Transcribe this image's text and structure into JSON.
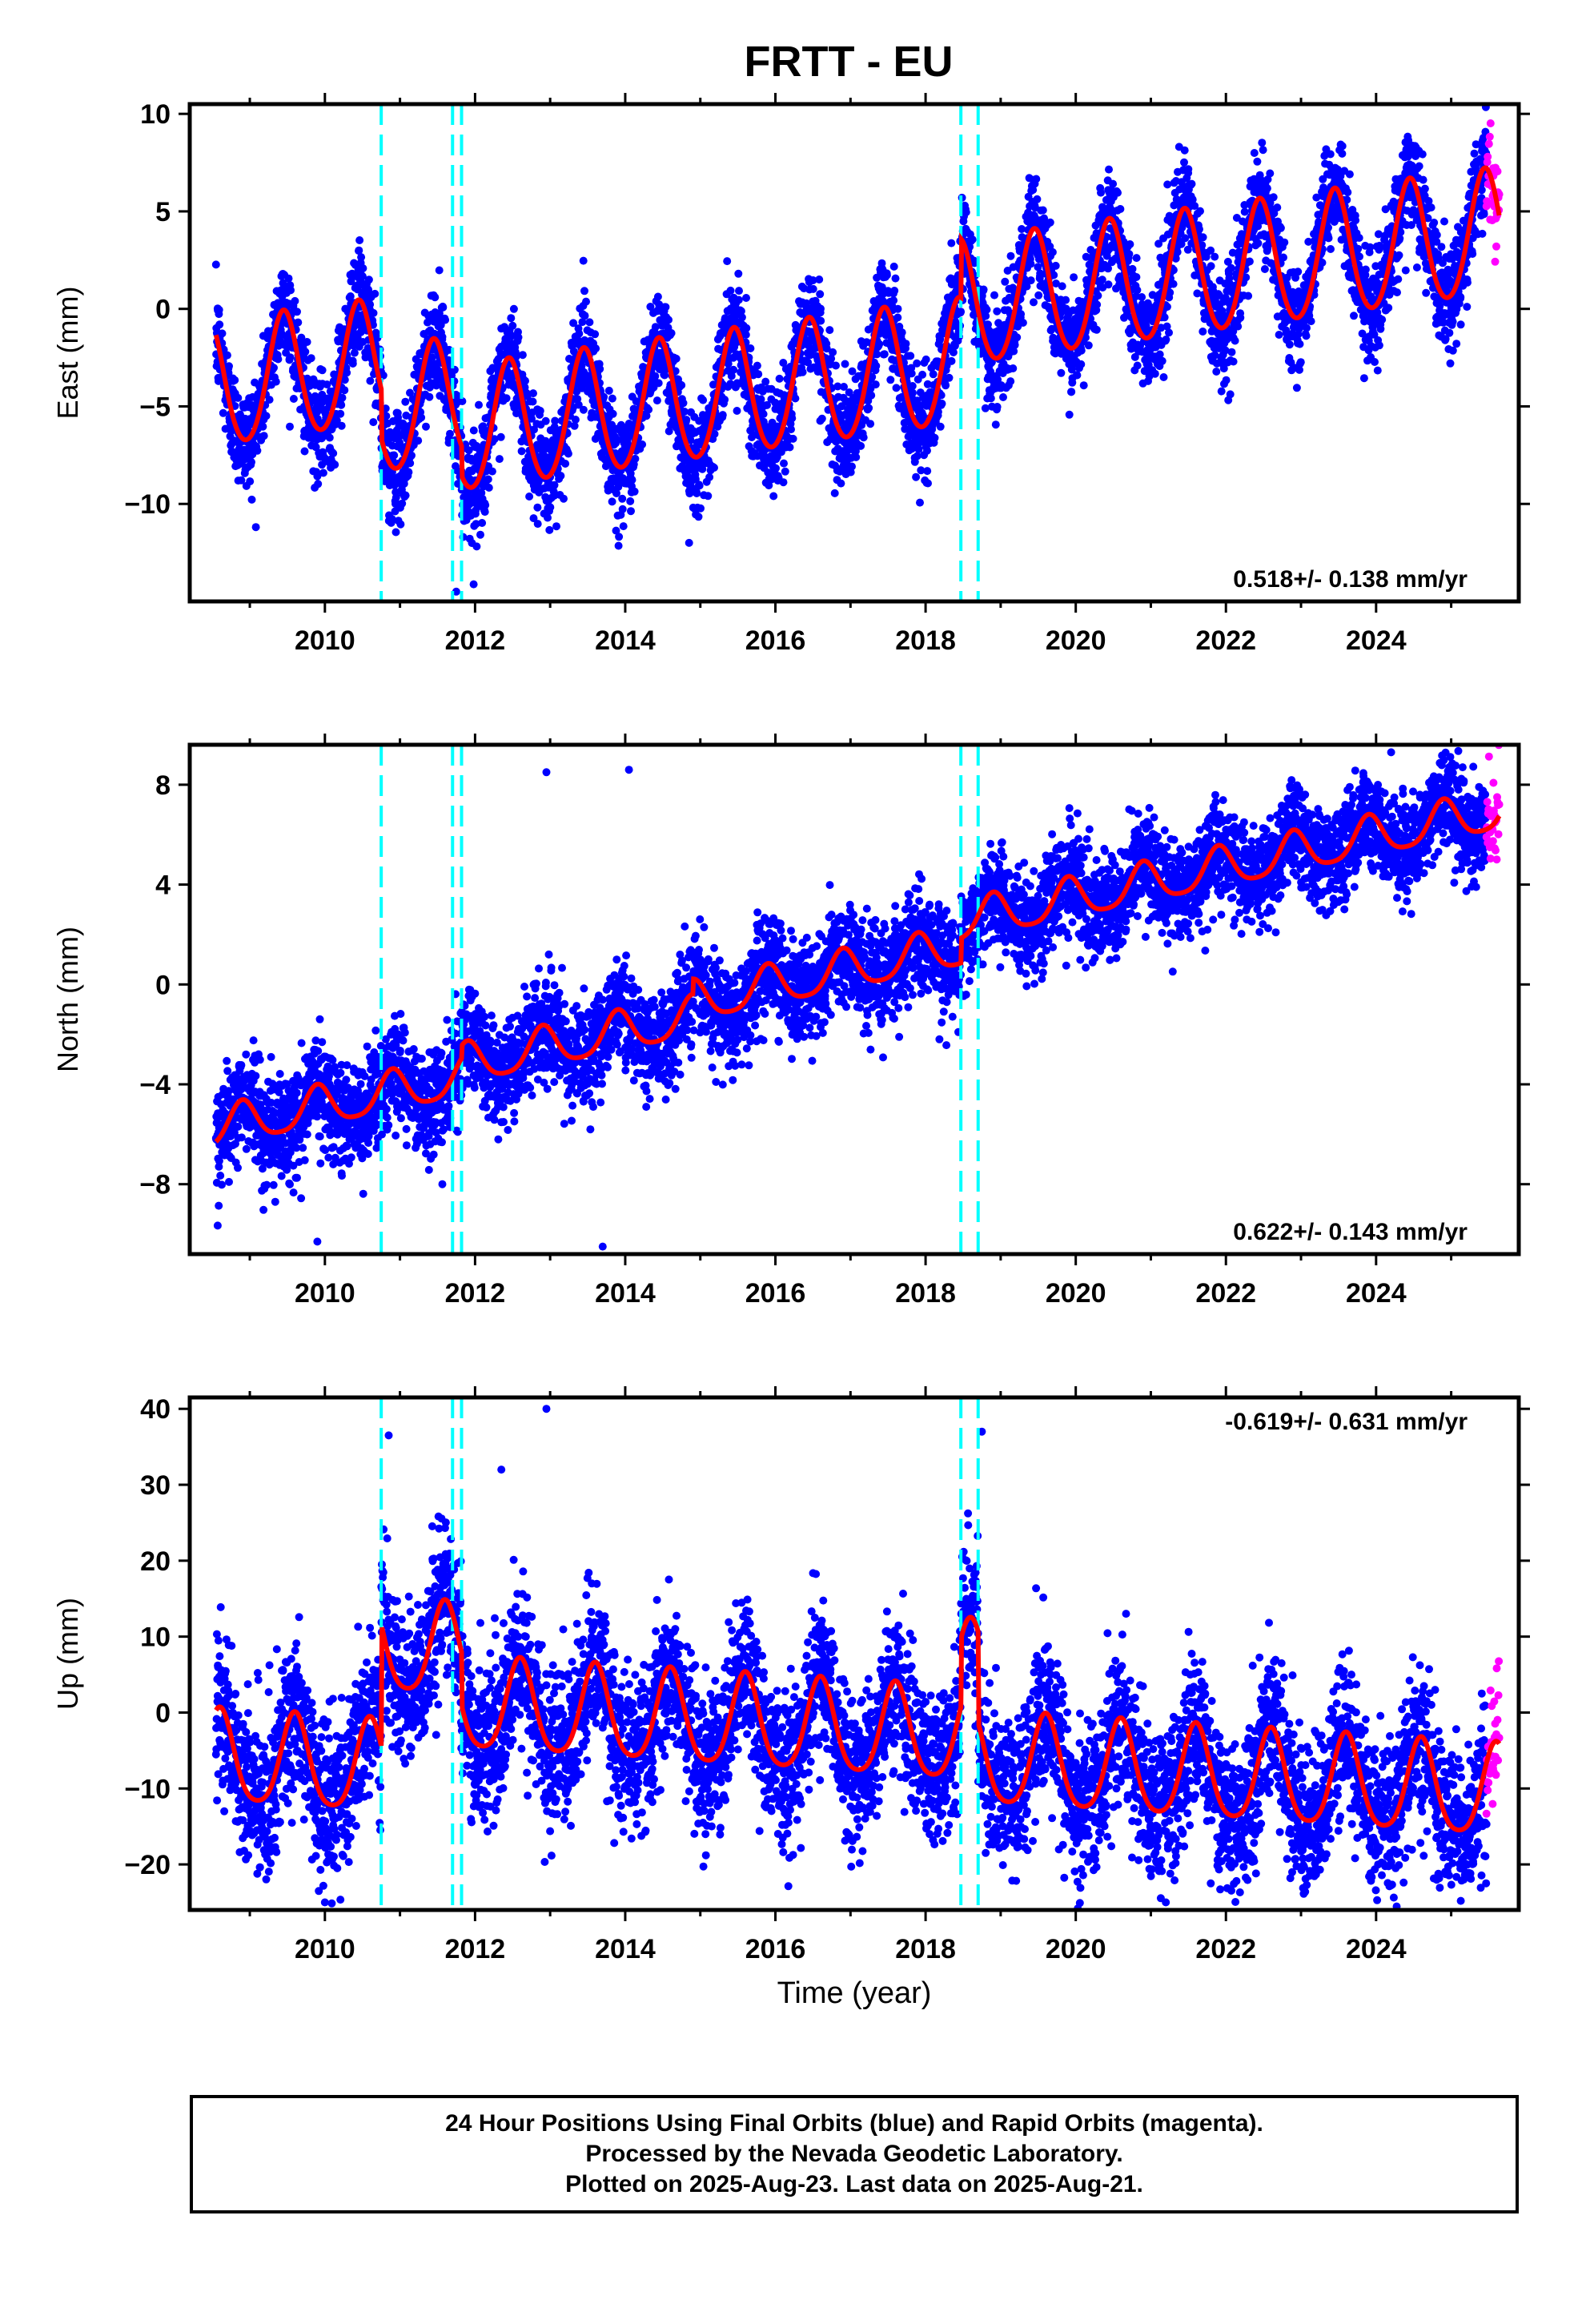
{
  "page": {
    "title": "FRTT - EU",
    "footer": {
      "line1": "24 Hour Positions Using Final Orbits (blue) and Rapid Orbits (magenta).",
      "line2": "Processed by the Nevada Geodetic Laboratory.",
      "line3": "Plotted on 2025-Aug-23. Last data on 2025-Aug-21."
    }
  },
  "colors": {
    "final_orbits": "#0000ff",
    "rapid_orbits": "#ff00ff",
    "model": "#ff0000",
    "steps": "#00ffff",
    "axes": "#000000"
  },
  "chart_data": [
    {
      "type": "scatter",
      "ylabel": "East (mm)",
      "xlabel": "",
      "xlim": [
        2008.2,
        2025.9
      ],
      "ylim": [
        -15,
        10.5
      ],
      "xticks": [
        2010,
        2012,
        2014,
        2016,
        2018,
        2020,
        2022,
        2024
      ],
      "yticks": [
        -10,
        -5,
        0,
        5,
        10
      ],
      "yticklabels": [
        "−10",
        "−5",
        "0",
        "5",
        "10"
      ],
      "velocity": "0.518+/- 0.138 mm/yr",
      "velocity_position": "bottom-right",
      "step_epochs": [
        2010.75,
        2011.7,
        2011.82,
        2018.47,
        2018.7
      ],
      "data_start": 2008.55,
      "data_end": 2025.64,
      "rapid_start": 2025.47,
      "model": {
        "offset": -4.2,
        "trend_mm_per_yr": 0.518,
        "annual_amplitude": 3.2,
        "annual_peak": 0.45,
        "semiannual_amplitude": 0.3
      },
      "model_steps": [
        {
          "epoch": 2010.75,
          "offset": -2.5
        },
        {
          "epoch": 2011.82,
          "offset": -1.5
        },
        {
          "epoch": 2018.47,
          "offset": 3.0
        }
      ],
      "scatter_noise_mm": 1.3,
      "outliers": [
        {
          "x": 2013.9,
          "y": -10.6
        },
        {
          "x": 2014.85,
          "y": -12.0
        },
        {
          "x": 2011.75,
          "y": -14.5
        }
      ]
    },
    {
      "type": "scatter",
      "ylabel": "North (mm)",
      "xlabel": "",
      "xlim": [
        2008.2,
        2025.9
      ],
      "ylim": [
        -10.8,
        9.6
      ],
      "xticks": [
        2010,
        2012,
        2014,
        2016,
        2018,
        2020,
        2022,
        2024
      ],
      "yticks": [
        -8,
        -4,
        0,
        4,
        8
      ],
      "yticklabels": [
        "−8",
        "−4",
        "0",
        "4",
        "8"
      ],
      "velocity": "0.622+/- 0.143 mm/yr",
      "velocity_position": "bottom-right",
      "step_epochs": [
        2010.75,
        2011.7,
        2011.82,
        2018.47,
        2018.7
      ],
      "data_start": 2008.55,
      "data_end": 2025.64,
      "rapid_start": 2025.47,
      "model": {
        "offset": -6.0,
        "trend_mm_per_yr": 0.622,
        "annual_amplitude": 0.8,
        "annual_peak": 0.9,
        "semiannual_amplitude": 0.15
      },
      "model_steps": [
        {
          "epoch": 2011.82,
          "offset": 0.5
        },
        {
          "epoch": 2014.9,
          "offset": 0.6
        },
        {
          "epoch": 2018.47,
          "offset": 1.0
        }
      ],
      "scatter_noise_mm": 1.0,
      "outliers": [
        {
          "x": 2012.95,
          "y": 8.5
        },
        {
          "x": 2014.05,
          "y": 8.6
        },
        {
          "x": 2024.2,
          "y": 9.3
        },
        {
          "x": 2013.7,
          "y": -10.5
        },
        {
          "x": 2009.9,
          "y": -10.3
        }
      ]
    },
    {
      "type": "scatter",
      "ylabel": "Up (mm)",
      "xlabel": "Time (year)",
      "xlim": [
        2008.2,
        2025.9
      ],
      "ylim": [
        -26,
        41.5
      ],
      "xticks": [
        2010,
        2012,
        2014,
        2016,
        2018,
        2020,
        2022,
        2024
      ],
      "yticks": [
        -20,
        -10,
        0,
        10,
        20,
        30,
        40
      ],
      "yticklabels": [
        "−20",
        "−10",
        "0",
        "10",
        "20",
        "30",
        "40"
      ],
      "velocity": "-0.619+/- 0.631 mm/yr",
      "velocity_position": "top-right",
      "step_epochs": [
        2010.75,
        2011.7,
        2011.82,
        2018.47,
        2018.7
      ],
      "data_start": 2008.55,
      "data_end": 2025.64,
      "rapid_start": 2025.47,
      "model": {
        "offset": -6.0,
        "trend_mm_per_yr": -0.619,
        "annual_amplitude": 6.0,
        "annual_peak": 0.6,
        "semiannual_amplitude": 1.0
      },
      "model_steps": [
        {
          "epoch": 2010.75,
          "offset": 16.0
        },
        {
          "epoch": 2011.82,
          "offset": -7.0
        },
        {
          "epoch": 2018.47,
          "offset": 9.0
        },
        {
          "epoch": 2018.7,
          "offset": -12.0
        }
      ],
      "scatter_noise_mm": 5.0,
      "outliers": [
        {
          "x": 2012.95,
          "y": 40.0
        },
        {
          "x": 2010.85,
          "y": 36.5
        },
        {
          "x": 2018.75,
          "y": 37.0
        },
        {
          "x": 2012.35,
          "y": 32.0
        },
        {
          "x": 2010.0,
          "y": -25.0
        },
        {
          "x": 2021.2,
          "y": -25.0
        }
      ]
    }
  ]
}
